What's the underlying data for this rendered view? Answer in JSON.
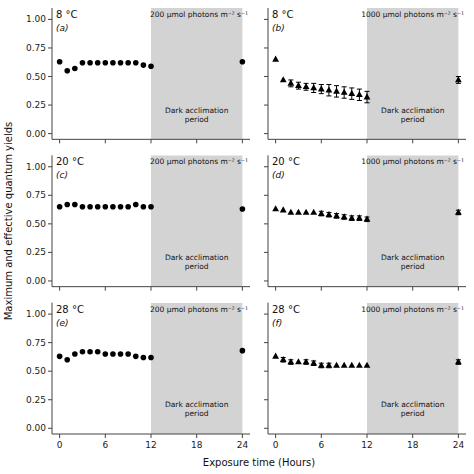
{
  "chart_data": [
    {
      "type": "scatter",
      "title": "8 °C",
      "subtitle": "200 μmol photons m⁻² s⁻¹",
      "annotations": [
        {
          "text": "(a)"
        },
        {
          "text": "Dark acclimation\nperiod",
          "x": 18,
          "y": 0.17
        }
      ],
      "spans": [
        {
          "x0": 12,
          "x1": 24,
          "color": "#d3d3d3"
        }
      ],
      "ylabel": "Maximum and effective quantum yields",
      "xlabel": "Exposure time  (Hours)",
      "x": [
        0,
        1,
        2,
        3,
        4,
        5,
        6,
        7,
        8,
        9,
        10,
        11,
        12,
        24
      ],
      "series": [
        {
          "values": [
            0.63,
            0.55,
            0.57,
            0.62,
            0.62,
            0.62,
            0.62,
            0.62,
            0.62,
            0.62,
            0.62,
            0.6,
            0.59,
            0.63
          ],
          "errors": [
            0.0,
            0.0,
            0.0,
            0.0,
            0.0,
            0.0,
            0.0,
            0.0,
            0.0,
            0.0,
            0.0,
            0.0,
            0.0,
            0.0
          ],
          "marker": "circle",
          "color": "black"
        }
      ],
      "xlim": [
        -1,
        25
      ],
      "xticks": [
        0,
        6,
        12,
        18,
        24
      ],
      "ylim": [
        -0.05,
        1.1
      ],
      "yticks": [
        {
          "value": 0.0,
          "label": "0.00"
        },
        0.25,
        {
          "value": 0.5,
          "label": "0.50"
        },
        0.75,
        {
          "value": 1.0,
          "label": "1.00"
        }
      ],
      "tick_labels": "y"
    },
    {
      "type": "scatter",
      "title": "8 °C",
      "subtitle": "1000 μmol photons m⁻² s⁻¹",
      "annotations": [
        {
          "text": "(b)"
        },
        {
          "text": "Dark acclimation\nperiod",
          "x": 18,
          "y": 0.17
        }
      ],
      "spans": [
        {
          "x0": 12,
          "x1": 24,
          "color": "#d3d3d3"
        }
      ],
      "x": [
        0,
        1,
        2,
        3,
        4,
        5,
        6,
        7,
        8,
        9,
        10,
        11,
        12,
        24
      ],
      "series": [
        {
          "values": [
            0.65,
            0.47,
            0.44,
            0.42,
            0.41,
            0.4,
            0.39,
            0.38,
            0.37,
            0.36,
            0.35,
            0.34,
            0.32,
            0.47
          ],
          "errors": [
            0.0,
            0.0,
            0.03,
            0.03,
            0.03,
            0.04,
            0.04,
            0.05,
            0.05,
            0.05,
            0.05,
            0.05,
            0.05,
            0.03
          ],
          "marker": "triangle",
          "color": "black"
        }
      ],
      "xlim": [
        -1,
        25
      ],
      "xticks": [
        0,
        6,
        12,
        18,
        24
      ],
      "ylim": [
        -0.05,
        1.1
      ],
      "yticks": [
        {
          "value": 0.0,
          "label": "0.00"
        },
        0.25,
        {
          "value": 0.5,
          "label": "0.50"
        },
        0.75,
        {
          "value": 1.0,
          "label": "1.00"
        }
      ],
      "tick_labels": false
    },
    {
      "type": "scatter",
      "title": "20 °C",
      "subtitle": "200 μmol photons m⁻² s⁻¹",
      "annotations": [
        {
          "text": "(c)"
        },
        {
          "text": "Dark acclimation\nperiod",
          "x": 18,
          "y": 0.17
        }
      ],
      "spans": [
        {
          "x0": 12,
          "x1": 24,
          "color": "#d3d3d3"
        }
      ],
      "x": [
        0,
        1,
        2,
        3,
        4,
        5,
        6,
        7,
        8,
        9,
        10,
        11,
        12,
        24
      ],
      "series": [
        {
          "values": [
            0.65,
            0.67,
            0.67,
            0.65,
            0.65,
            0.65,
            0.65,
            0.65,
            0.65,
            0.65,
            0.67,
            0.65,
            0.65,
            0.63
          ],
          "errors": [
            0.0,
            0.0,
            0.0,
            0.0,
            0.0,
            0.0,
            0.0,
            0.0,
            0.0,
            0.0,
            0.0,
            0.0,
            0.0,
            0.0
          ],
          "marker": "circle",
          "color": "black"
        }
      ],
      "xlim": [
        -1,
        25
      ],
      "xticks": [
        0,
        6,
        12,
        18,
        24
      ],
      "ylim": [
        -0.05,
        1.1
      ],
      "yticks": [
        {
          "value": 0.0,
          "label": "0.00"
        },
        0.25,
        {
          "value": 0.5,
          "label": "0.50"
        },
        0.75,
        {
          "value": 1.0,
          "label": "1.00"
        }
      ],
      "tick_labels": "y"
    },
    {
      "type": "scatter",
      "title": "20 °C",
      "subtitle": "1000 μmol photons m⁻² s⁻¹",
      "annotations": [
        {
          "text": "(d)"
        },
        {
          "text": "Dark acclimation\nperiod",
          "x": 18,
          "y": 0.17
        }
      ],
      "spans": [
        {
          "x0": 12,
          "x1": 24,
          "color": "#d3d3d3"
        }
      ],
      "x": [
        0,
        1,
        2,
        3,
        4,
        5,
        6,
        7,
        8,
        9,
        10,
        11,
        12,
        24
      ],
      "series": [
        {
          "values": [
            0.63,
            0.62,
            0.6,
            0.6,
            0.6,
            0.6,
            0.59,
            0.58,
            0.57,
            0.56,
            0.55,
            0.55,
            0.54,
            0.6
          ],
          "errors": [
            0.0,
            0.0,
            0.0,
            0.0,
            0.0,
            0.0,
            0.02,
            0.02,
            0.02,
            0.02,
            0.02,
            0.02,
            0.02,
            0.02
          ],
          "marker": "triangle",
          "color": "black"
        }
      ],
      "xlim": [
        -1,
        25
      ],
      "xticks": [
        0,
        6,
        12,
        18,
        24
      ],
      "ylim": [
        -0.05,
        1.1
      ],
      "yticks": [
        {
          "value": 0.0,
          "label": "0.00"
        },
        0.25,
        {
          "value": 0.5,
          "label": "0.50"
        },
        0.75,
        {
          "value": 1.0,
          "label": "1.00"
        }
      ],
      "tick_labels": false
    },
    {
      "type": "scatter",
      "title": "28 °C",
      "subtitle": "200 μmol photons m⁻² s⁻¹",
      "annotations": [
        {
          "text": "(e)"
        },
        {
          "text": "Dark acclimation\nperiod",
          "x": 18,
          "y": 0.17
        }
      ],
      "spans": [
        {
          "x0": 12,
          "x1": 24,
          "color": "#d3d3d3"
        }
      ],
      "x": [
        0,
        1,
        2,
        3,
        4,
        5,
        6,
        7,
        8,
        9,
        10,
        11,
        12,
        24
      ],
      "series": [
        {
          "values": [
            0.63,
            0.6,
            0.65,
            0.67,
            0.67,
            0.67,
            0.65,
            0.65,
            0.65,
            0.65,
            0.63,
            0.62,
            0.62,
            0.68
          ],
          "errors": [
            0.0,
            0.0,
            0.0,
            0.0,
            0.0,
            0.0,
            0.0,
            0.0,
            0.0,
            0.0,
            0.0,
            0.0,
            0.0,
            0.0
          ],
          "marker": "circle",
          "color": "black"
        }
      ],
      "xlim": [
        -1,
        25
      ],
      "xticks": [
        0,
        6,
        12,
        18,
        24
      ],
      "ylim": [
        -0.05,
        1.1
      ],
      "yticks": [
        {
          "value": 0.0,
          "label": "0.00"
        },
        0.25,
        {
          "value": 0.5,
          "label": "0.50"
        },
        0.75,
        {
          "value": 1.0,
          "label": "1.00"
        }
      ],
      "tick_labels": true
    },
    {
      "type": "scatter",
      "title": "28 °C",
      "subtitle": "1000 μmol photons m⁻² s⁻¹",
      "annotations": [
        {
          "text": "(f)"
        },
        {
          "text": "Dark acclimation\nperiod",
          "x": 18,
          "y": 0.17
        }
      ],
      "spans": [
        {
          "x0": 12,
          "x1": 24,
          "color": "#d3d3d3"
        }
      ],
      "x": [
        0,
        1,
        2,
        3,
        4,
        5,
        6,
        7,
        8,
        9,
        10,
        11,
        12,
        24
      ],
      "series": [
        {
          "values": [
            0.63,
            0.6,
            0.58,
            0.58,
            0.58,
            0.57,
            0.55,
            0.55,
            0.55,
            0.55,
            0.55,
            0.55,
            0.55,
            0.58
          ],
          "errors": [
            0.0,
            0.02,
            0.02,
            0.0,
            0.02,
            0.02,
            0.02,
            0.02,
            0.0,
            0.0,
            0.0,
            0.0,
            0.0,
            0.02
          ],
          "marker": "triangle",
          "color": "black"
        }
      ],
      "xlim": [
        -1,
        25
      ],
      "xticks": [
        0,
        6,
        12,
        18,
        24
      ],
      "ylim": [
        -0.05,
        1.1
      ],
      "yticks": [
        {
          "value": 0.0,
          "label": "0.00"
        },
        0.25,
        {
          "value": 0.5,
          "label": "0.50"
        },
        0.75,
        {
          "value": 1.0,
          "label": "1.00"
        }
      ],
      "tick_labels": "x"
    }
  ]
}
